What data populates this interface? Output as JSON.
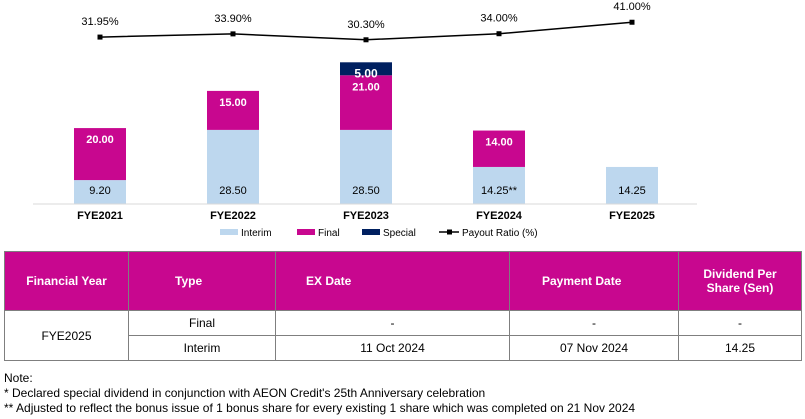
{
  "chart_data": {
    "type": "bar",
    "stacked": true,
    "categories": [
      "FYE2021",
      "FYE2022",
      "FYE2023",
      "FYE2024",
      "FYE2025"
    ],
    "series": [
      {
        "name": "Interim",
        "color": "#bdd7ee",
        "values": [
          9.2,
          28.5,
          28.5,
          14.25,
          14.25
        ],
        "labels": [
          "9.20",
          "28.50",
          "28.50",
          "14.25**",
          "14.25"
        ]
      },
      {
        "name": "Final",
        "color": "#c8078f",
        "values": [
          20.0,
          15.0,
          21.0,
          14.0,
          null
        ],
        "labels": [
          "20.00",
          "15.00",
          "21.00",
          "14.00",
          ""
        ]
      },
      {
        "name": "Special",
        "color": "#002060",
        "values": [
          null,
          null,
          5.0,
          null,
          null
        ],
        "labels": [
          "",
          "",
          "5.00",
          "",
          ""
        ]
      }
    ],
    "line_series": {
      "name": "Payout Ratio (%)",
      "values": [
        31.95,
        33.9,
        30.3,
        34.0,
        41.0
      ],
      "labels": [
        "31.95%",
        "33.90%",
        "30.30%",
        "34.00%",
        "41.00%"
      ]
    },
    "legend_position": "bottom",
    "grid": false
  },
  "table": {
    "headers": [
      "Financial Year",
      "Type",
      "EX Date",
      "Payment Date",
      "Dividend Per Share (Sen)"
    ],
    "year": "FYE2025",
    "rows": [
      {
        "type": "Final",
        "ex_date": "-",
        "payment_date": "-",
        "dps": "-"
      },
      {
        "type": "Interim",
        "ex_date": "11 Oct 2024",
        "payment_date": "07 Nov 2024",
        "dps": "14.25"
      }
    ]
  },
  "notes": {
    "title": "Note:",
    "lines": [
      "* Declared special dividend in conjunction with AEON Credit's 25th Anniversary celebration",
      "** Adjusted to reflect the bonus issue of 1 bonus share for every existing 1 share which was completed on 21 Nov 2024"
    ]
  }
}
